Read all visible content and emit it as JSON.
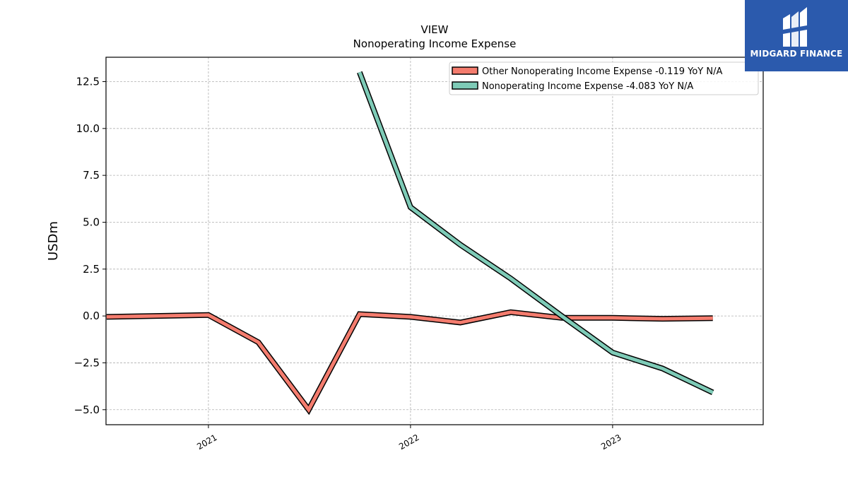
{
  "brand": {
    "name": "MIDGARD FINANCE",
    "color": "#2b5aad"
  },
  "chart_data": {
    "type": "line",
    "title": "VIEW",
    "subtitle": "Nonoperating Income Expense",
    "xlabel": "",
    "ylabel": "USDm",
    "xlim": [
      "2020-06-30",
      "2023-09-30"
    ],
    "ylim": [
      -5.8,
      13.8
    ],
    "x_ticks": [
      {
        "date": "2021-01-01",
        "label": "2021"
      },
      {
        "date": "2022-01-01",
        "label": "2022"
      },
      {
        "date": "2023-01-01",
        "label": "2023"
      }
    ],
    "y_ticks": [
      {
        "value": 12.5,
        "label": "12.5"
      },
      {
        "value": 10.0,
        "label": "10.0"
      },
      {
        "value": 7.5,
        "label": "7.5"
      },
      {
        "value": 5.0,
        "label": "5.0"
      },
      {
        "value": 2.5,
        "label": "2.5"
      },
      {
        "value": 0.0,
        "label": "0.0"
      },
      {
        "value": -2.5,
        "label": "−2.5"
      },
      {
        "value": -5.0,
        "label": "−5.0"
      }
    ],
    "grid": true,
    "legend_position": "top-right",
    "series": [
      {
        "name": "Other Nonoperating Income Expense  -0.119 YoY N/A",
        "color": "#f47c6e",
        "points": [
          {
            "x": "2020-07-01",
            "y": -0.05
          },
          {
            "x": "2021-01-01",
            "y": 0.05
          },
          {
            "x": "2021-04-01",
            "y": -1.4
          },
          {
            "x": "2021-07-01",
            "y": -5.0
          },
          {
            "x": "2021-10-01",
            "y": 0.1
          },
          {
            "x": "2022-01-01",
            "y": -0.05
          },
          {
            "x": "2022-04-01",
            "y": -0.35
          },
          {
            "x": "2022-07-01",
            "y": 0.2
          },
          {
            "x": "2022-10-01",
            "y": -0.1
          },
          {
            "x": "2023-01-01",
            "y": -0.1
          },
          {
            "x": "2023-04-01",
            "y": -0.15
          },
          {
            "x": "2023-07-01",
            "y": -0.12
          }
        ]
      },
      {
        "name": "Nonoperating Income Expense  -4.083 YoY N/A",
        "color": "#7ecbb7",
        "points": [
          {
            "x": "2021-10-01",
            "y": 13.0
          },
          {
            "x": "2022-01-01",
            "y": 5.8
          },
          {
            "x": "2022-04-01",
            "y": 3.8
          },
          {
            "x": "2022-07-01",
            "y": 2.0
          },
          {
            "x": "2022-10-01",
            "y": 0.0
          },
          {
            "x": "2023-01-01",
            "y": -1.95
          },
          {
            "x": "2023-04-01",
            "y": -2.8
          },
          {
            "x": "2023-07-01",
            "y": -4.08
          }
        ]
      }
    ]
  }
}
